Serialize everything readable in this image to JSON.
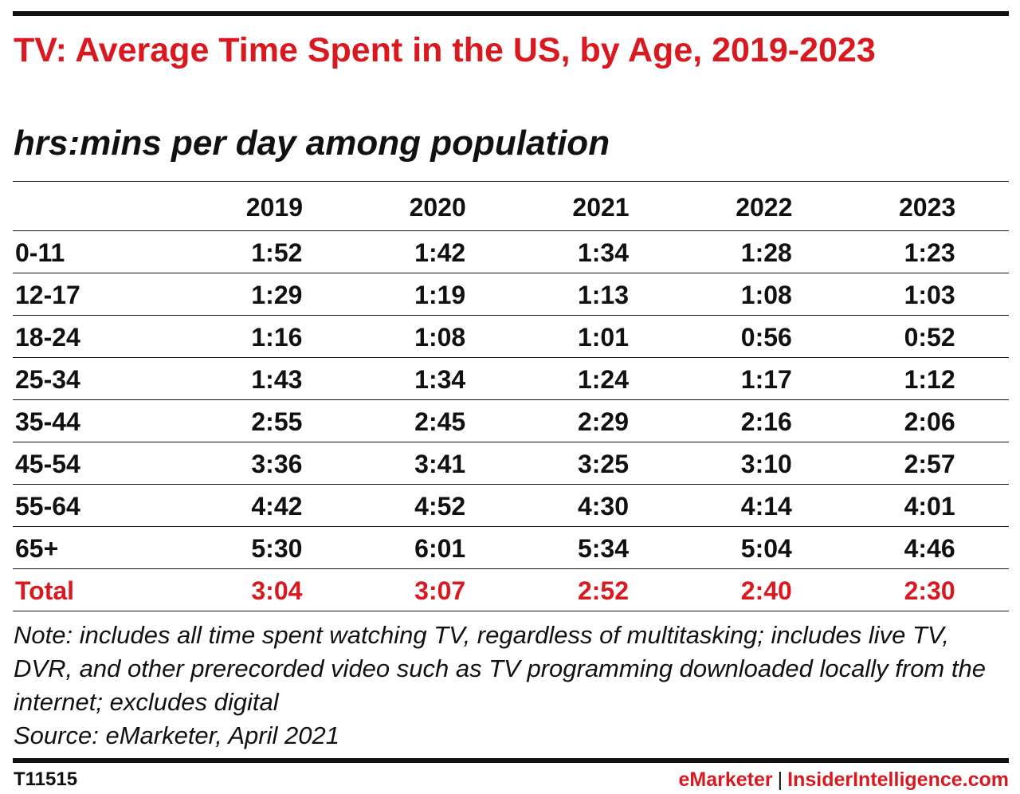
{
  "chart_data": {
    "type": "table",
    "title": "TV: Average Time Spent in the US, by Age, 2019-2023",
    "subtitle": "hrs:mins per day among population",
    "columns": [
      "2019",
      "2020",
      "2021",
      "2022",
      "2023"
    ],
    "rows": [
      {
        "label": "0-11",
        "values": [
          "1:52",
          "1:42",
          "1:34",
          "1:28",
          "1:23"
        ]
      },
      {
        "label": "12-17",
        "values": [
          "1:29",
          "1:19",
          "1:13",
          "1:08",
          "1:03"
        ]
      },
      {
        "label": "18-24",
        "values": [
          "1:16",
          "1:08",
          "1:01",
          "0:56",
          "0:52"
        ]
      },
      {
        "label": "25-34",
        "values": [
          "1:43",
          "1:34",
          "1:24",
          "1:17",
          "1:12"
        ]
      },
      {
        "label": "35-44",
        "values": [
          "2:55",
          "2:45",
          "2:29",
          "2:16",
          "2:06"
        ]
      },
      {
        "label": "45-54",
        "values": [
          "3:36",
          "3:41",
          "3:25",
          "3:10",
          "2:57"
        ]
      },
      {
        "label": "55-64",
        "values": [
          "4:42",
          "4:52",
          "4:30",
          "4:14",
          "4:01"
        ]
      },
      {
        "label": "65+",
        "values": [
          "5:30",
          "6:01",
          "5:34",
          "5:04",
          "4:46"
        ]
      }
    ],
    "total": {
      "label": "Total",
      "values": [
        "3:04",
        "3:07",
        "2:52",
        "2:40",
        "2:30"
      ]
    }
  },
  "note": "Note: includes all time spent watching TV, regardless of multitasking; includes live TV, DVR, and other prerecorded video such as TV programming downloaded locally from the internet; excludes digital",
  "source": "Source: eMarketer, April 2021",
  "footer": {
    "chart_id": "T11515",
    "brand_left": "eMarketer",
    "separator": "|",
    "brand_right": "InsiderIntelligence.com"
  },
  "colors": {
    "accent": "#d9191f",
    "text": "#111111",
    "rule": "#111111"
  }
}
